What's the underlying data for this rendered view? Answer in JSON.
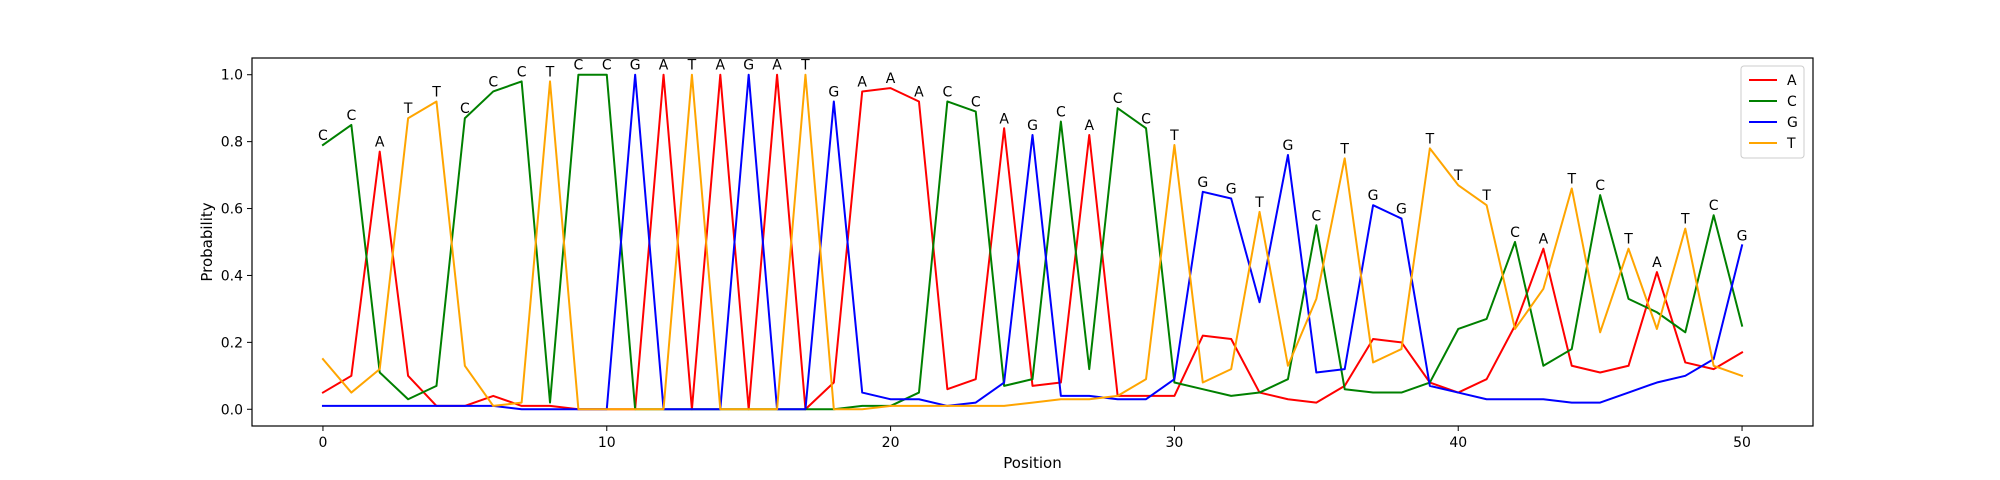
{
  "chart_data": {
    "type": "line",
    "title": "",
    "xlabel": "Position",
    "ylabel": "Probability",
    "xlim": [
      -2.5,
      52.5
    ],
    "ylim": [
      -0.05,
      1.05
    ],
    "xticks": [
      0,
      10,
      20,
      30,
      40,
      50
    ],
    "xtick_labels": [
      "0",
      "10",
      "20",
      "30",
      "40",
      "50"
    ],
    "yticks": [
      0.0,
      0.2,
      0.4,
      0.6,
      0.8,
      1.0
    ],
    "ytick_labels": [
      "0.0",
      "0.2",
      "0.4",
      "0.6",
      "0.8",
      "1.0"
    ],
    "grid": false,
    "legend_position": "top-right",
    "x": [
      0,
      1,
      2,
      3,
      4,
      5,
      6,
      7,
      8,
      9,
      10,
      11,
      12,
      13,
      14,
      15,
      16,
      17,
      18,
      19,
      20,
      21,
      22,
      23,
      24,
      25,
      26,
      27,
      28,
      29,
      30,
      31,
      32,
      33,
      34,
      35,
      36,
      37,
      38,
      39,
      40,
      41,
      42,
      43,
      44,
      45,
      46,
      47,
      48,
      49,
      50
    ],
    "series": [
      {
        "name": "A",
        "color": "#ff0000",
        "values": [
          0.05,
          0.1,
          0.77,
          0.1,
          0.01,
          0.01,
          0.04,
          0.01,
          0.01,
          0.0,
          0.0,
          0.0,
          1.0,
          0.0,
          1.0,
          0.0,
          1.0,
          0.0,
          0.08,
          0.95,
          0.96,
          0.92,
          0.06,
          0.09,
          0.84,
          0.07,
          0.08,
          0.82,
          0.04,
          0.04,
          0.04,
          0.22,
          0.21,
          0.05,
          0.03,
          0.02,
          0.07,
          0.21,
          0.2,
          0.08,
          0.05,
          0.09,
          0.25,
          0.48,
          0.13,
          0.11,
          0.13,
          0.41,
          0.14,
          0.12,
          0.17
        ]
      },
      {
        "name": "C",
        "color": "#008000",
        "values": [
          0.79,
          0.85,
          0.11,
          0.03,
          0.07,
          0.87,
          0.95,
          0.98,
          0.02,
          1.0,
          1.0,
          0.0,
          0.0,
          0.0,
          0.0,
          0.0,
          0.0,
          0.0,
          0.0,
          0.01,
          0.01,
          0.05,
          0.92,
          0.89,
          0.07,
          0.09,
          0.86,
          0.12,
          0.9,
          0.84,
          0.08,
          0.06,
          0.04,
          0.05,
          0.09,
          0.55,
          0.06,
          0.05,
          0.05,
          0.08,
          0.24,
          0.27,
          0.5,
          0.13,
          0.18,
          0.64,
          0.33,
          0.29,
          0.23,
          0.58,
          0.25
        ]
      },
      {
        "name": "G",
        "color": "#0000ff",
        "values": [
          0.01,
          0.01,
          0.01,
          0.01,
          0.01,
          0.01,
          0.01,
          0.0,
          0.0,
          0.0,
          0.0,
          1.0,
          0.0,
          0.0,
          0.0,
          1.0,
          0.0,
          0.0,
          0.92,
          0.05,
          0.03,
          0.03,
          0.01,
          0.02,
          0.08,
          0.82,
          0.04,
          0.04,
          0.03,
          0.03,
          0.09,
          0.65,
          0.63,
          0.32,
          0.76,
          0.11,
          0.12,
          0.61,
          0.57,
          0.07,
          0.05,
          0.03,
          0.03,
          0.03,
          0.02,
          0.02,
          0.05,
          0.08,
          0.1,
          0.15,
          0.49
        ]
      },
      {
        "name": "T",
        "color": "#ffa500",
        "values": [
          0.15,
          0.05,
          0.12,
          0.87,
          0.92,
          0.13,
          0.01,
          0.02,
          0.98,
          0.0,
          0.0,
          0.0,
          0.0,
          1.0,
          0.0,
          0.0,
          0.0,
          1.0,
          0.0,
          0.0,
          0.01,
          0.01,
          0.01,
          0.01,
          0.01,
          0.02,
          0.03,
          0.03,
          0.04,
          0.09,
          0.79,
          0.08,
          0.12,
          0.59,
          0.13,
          0.33,
          0.75,
          0.14,
          0.18,
          0.78,
          0.67,
          0.61,
          0.24,
          0.36,
          0.66,
          0.23,
          0.48,
          0.24,
          0.54,
          0.13,
          0.1
        ]
      }
    ],
    "annotations": [
      "C",
      "C",
      "A",
      "T",
      "T",
      "C",
      "C",
      "C",
      "T",
      "C",
      "C",
      "G",
      "A",
      "T",
      "A",
      "G",
      "A",
      "T",
      "G",
      "A",
      "A",
      "A",
      "C",
      "C",
      "A",
      "G",
      "C",
      "A",
      "C",
      "C",
      "T",
      "G",
      "G",
      "T",
      "G",
      "C",
      "T",
      "G",
      "G",
      "T",
      "T",
      "T",
      "C",
      "A",
      "T",
      "C",
      "T",
      "A",
      "T",
      "C",
      "G"
    ]
  }
}
